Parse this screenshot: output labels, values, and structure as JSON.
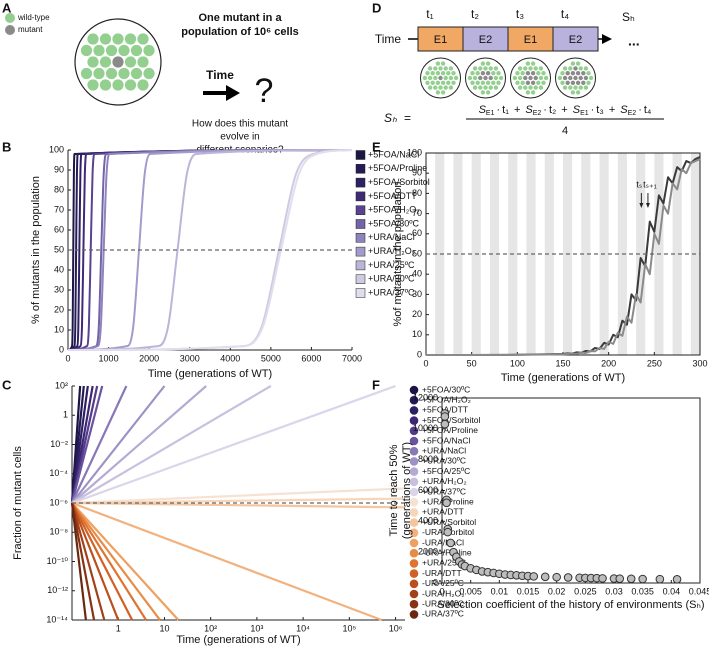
{
  "panel_a": {
    "label": "A",
    "legend": [
      "wild-type",
      "mutant"
    ],
    "heading": [
      "One mutant in a",
      "population of 10⁶ cells"
    ],
    "time": "Time",
    "question_mark": "?",
    "question": [
      "How does this mutant",
      "evolve in",
      "different scenarios?"
    ]
  },
  "panel_d": {
    "label": "D",
    "durations": [
      "t₁",
      "t₂",
      "t₃",
      "t₄"
    ],
    "environments": [
      "E1",
      "E2",
      "E1",
      "E2"
    ],
    "history": "Sₕ",
    "time": "Time",
    "ellipsis": "...",
    "formula": {
      "lhs": "Sₕ",
      "equals": "=",
      "dot": "·",
      "plus": "+",
      "denominator": "4",
      "terms": [
        {
          "symbol": "S",
          "env": "E1",
          "time": "t₁"
        },
        {
          "symbol": "S",
          "env": "E2",
          "time": "t₂"
        },
        {
          "symbol": "S",
          "env": "E1",
          "time": "t₃"
        },
        {
          "symbol": "S",
          "env": "E2",
          "time": "t₄"
        }
      ]
    }
  },
  "chart_data": [
    {
      "type": "line",
      "panel": "B",
      "smooth": true,
      "frame": "axes",
      "legend_marker": "square",
      "xlabel": "Time (generations of WT)",
      "ylabel": "% of mutants in the population",
      "xlim": [
        0,
        7000
      ],
      "xticks": [
        0,
        1000,
        2000,
        3000,
        4000,
        5000,
        6000,
        7000
      ],
      "ylim": [
        0,
        100
      ],
      "yticks": [
        0,
        10,
        20,
        30,
        40,
        50,
        60,
        70,
        80,
        90,
        100
      ],
      "hline": 50,
      "series": [
        {
          "name": "+5FOA/NaCl",
          "color": "#1c1846",
          "x": [
            0,
            100,
            115,
            130,
            145,
            160,
            7000
          ],
          "values": [
            0,
            2,
            12,
            50,
            88,
            98,
            100
          ]
        },
        {
          "name": "+5FOA/Proline",
          "color": "#231c56",
          "x": [
            0,
            160,
            180,
            200,
            220,
            240,
            7000
          ],
          "values": [
            0,
            2,
            12,
            50,
            88,
            98,
            100
          ]
        },
        {
          "name": "+5FOA/Sorbitol",
          "color": "#2e2064",
          "x": [
            0,
            230,
            255,
            280,
            305,
            330,
            7000
          ],
          "values": [
            0,
            2,
            12,
            50,
            88,
            98,
            100
          ]
        },
        {
          "name": "+5FOA/DTT",
          "color": "#402a78",
          "x": [
            0,
            310,
            345,
            380,
            415,
            450,
            7000
          ],
          "values": [
            0,
            2,
            12,
            50,
            88,
            98,
            100
          ]
        },
        {
          "name": "+5FOA/H₂O₂",
          "color": "#5a4290",
          "x": [
            0,
            470,
            515,
            560,
            605,
            650,
            7000
          ],
          "values": [
            0,
            2,
            12,
            50,
            88,
            98,
            100
          ]
        },
        {
          "name": "+5FOA/30ºC",
          "color": "#7463a8",
          "x": [
            0,
            700,
            760,
            820,
            880,
            940,
            7000
          ],
          "values": [
            0,
            2,
            12,
            50,
            88,
            98,
            100
          ]
        },
        {
          "name": "+URA/NaCl",
          "color": "#8e84bd",
          "x": [
            0,
            740,
            810,
            880,
            950,
            1020,
            7000
          ],
          "values": [
            0,
            2,
            12,
            50,
            88,
            98,
            100
          ]
        },
        {
          "name": "+URA/H₂O₂",
          "color": "#a49bcb",
          "x": [
            0,
            1470,
            1610,
            1750,
            1890,
            2030,
            7000
          ],
          "values": [
            0,
            2,
            12,
            50,
            88,
            98,
            100
          ]
        },
        {
          "name": "+URA/25ºC",
          "color": "#bdb4d9",
          "x": [
            0,
            2240,
            2470,
            2700,
            2930,
            3160,
            7000
          ],
          "values": [
            0,
            2,
            12,
            50,
            88,
            98,
            100
          ]
        },
        {
          "name": "+URA/30ºC",
          "color": "#d0c9e3",
          "x": [
            0,
            4360,
            4780,
            5200,
            5620,
            6040,
            7000
          ],
          "values": [
            0,
            2,
            12,
            50,
            88,
            98,
            100
          ]
        },
        {
          "name": "+URA/37ºC",
          "color": "#e2dded",
          "x": [
            0,
            4370,
            4810,
            5250,
            5690,
            6130,
            7000
          ],
          "values": [
            0,
            2,
            12,
            50,
            88,
            98,
            100
          ]
        }
      ]
    },
    {
      "type": "line",
      "panel": "C",
      "xscale": "log",
      "yscale": "log",
      "frame": "axes",
      "legend_marker": "circle",
      "xlabel": "Time (generations of WT)",
      "ylabel": "Fraction of mutant cells",
      "xlim": [
        0.1,
        1600000
      ],
      "xticks": [
        1,
        10,
        {
          "value": 100,
          "label": "10²"
        },
        {
          "value": 1000,
          "label": "10³"
        },
        {
          "value": 10000,
          "label": "10⁴"
        },
        {
          "value": 100000,
          "label": "10⁵"
        },
        {
          "value": 1000000,
          "label": "10⁶"
        }
      ],
      "ylim": [
        1e-14,
        100
      ],
      "yticks": [
        {
          "value": 100,
          "label": "10²"
        },
        1,
        {
          "value": 0.01,
          "label": "10⁻²"
        },
        {
          "value": 0.0001,
          "label": "10⁻⁴"
        },
        {
          "value": 1e-06,
          "label": "10⁻⁶"
        },
        {
          "value": 1e-08,
          "label": "10⁻⁸"
        },
        {
          "value": 1e-10,
          "label": "10⁻¹⁰"
        },
        {
          "value": 1e-12,
          "label": "10⁻¹²"
        },
        {
          "value": 1e-14,
          "label": "10⁻¹⁴"
        }
      ],
      "hline": 1e-06,
      "series": [
        {
          "name": "+5FOA/30ºC",
          "color": "#1b1545",
          "x": [
            0.1,
            0.15
          ],
          "values": [
            1e-06,
            100
          ]
        },
        {
          "name": "+5FOA/H₂O₂",
          "color": "#231a55",
          "x": [
            0.1,
            0.18
          ],
          "values": [
            1e-06,
            100
          ]
        },
        {
          "name": "+5FOA/DTT",
          "color": "#2d1f63",
          "x": [
            0.1,
            0.22
          ],
          "values": [
            1e-06,
            100
          ]
        },
        {
          "name": "+5FOA/Sorbitol",
          "color": "#3d2775",
          "x": [
            0.1,
            0.28
          ],
          "values": [
            1e-06,
            100
          ]
        },
        {
          "name": "+5FOA/Proline",
          "color": "#533a8a",
          "x": [
            0.1,
            0.35
          ],
          "values": [
            1e-06,
            100
          ]
        },
        {
          "name": "+5FOA/NaCl",
          "color": "#6b52a0",
          "x": [
            0.1,
            0.45
          ],
          "values": [
            1e-06,
            100
          ]
        },
        {
          "name": "+URA/NaCl",
          "color": "#8878b8",
          "x": [
            0.1,
            1.5
          ],
          "values": [
            1e-06,
            100
          ]
        },
        {
          "name": "+URA/30ºC",
          "color": "#9d91c6",
          "x": [
            0.1,
            10
          ],
          "values": [
            1e-06,
            100
          ]
        },
        {
          "name": "+5FOA/25ºC",
          "color": "#b4aad4",
          "x": [
            0.1,
            80
          ],
          "values": [
            1e-06,
            100
          ]
        },
        {
          "name": "+URA/H₂O₂",
          "color": "#c9c0e0",
          "x": [
            0.1,
            2000
          ],
          "values": [
            1e-06,
            100
          ]
        },
        {
          "name": "+URA/37ºC",
          "color": "#dbd4ea",
          "x": [
            0.1,
            1000000
          ],
          "values": [
            1e-06,
            100
          ]
        },
        {
          "name": "+URA/Proline",
          "color": "#f6e2d4",
          "x": [
            0.1,
            1600000
          ],
          "values": [
            1e-06,
            1e-05
          ]
        },
        {
          "name": "+URA/DTT",
          "color": "#f7d5b8",
          "x": [
            0.1,
            1600000
          ],
          "values": [
            1e-06,
            2e-06
          ]
        },
        {
          "name": "+URA/Sorbitol",
          "color": "#f5c69e",
          "x": [
            0.1,
            1600000
          ],
          "values": [
            1e-06,
            5e-07
          ]
        },
        {
          "name": "-URA/Sorbitol",
          "color": "#f2b27f",
          "x": [
            0.1,
            500000
          ],
          "values": [
            1e-06,
            1e-14
          ]
        },
        {
          "name": "-URA/NaCl",
          "color": "#eea060",
          "x": [
            0.1,
            20
          ],
          "values": [
            1e-06,
            1e-14
          ]
        },
        {
          "name": "-URA/Proline",
          "color": "#e88c45",
          "x": [
            0.1,
            8
          ],
          "values": [
            1e-06,
            1e-14
          ]
        },
        {
          "name": "+URA/25ºC",
          "color": "#de7432",
          "x": [
            0.1,
            4
          ],
          "values": [
            1e-06,
            1e-14
          ]
        },
        {
          "name": "-URA/DTT",
          "color": "#d06226",
          "x": [
            0.1,
            2
          ],
          "values": [
            1e-06,
            1e-14
          ]
        },
        {
          "name": "-URA/25ºC",
          "color": "#bb4f1e",
          "x": [
            0.1,
            1
          ],
          "values": [
            1e-06,
            1e-14
          ]
        },
        {
          "name": "-URA/H₂O₂",
          "color": "#a24018",
          "x": [
            0.1,
            0.5
          ],
          "values": [
            1e-06,
            1e-14
          ]
        },
        {
          "name": "-URA/30ºC",
          "color": "#873313",
          "x": [
            0.1,
            0.3
          ],
          "values": [
            1e-06,
            1e-14
          ]
        },
        {
          "name": "-URA/37ºC",
          "color": "#6a2810",
          "x": [
            0.1,
            0.2
          ],
          "values": [
            1e-06,
            1e-14
          ]
        }
      ]
    },
    {
      "type": "line",
      "panel": "E",
      "frame": "box",
      "env_period": 10,
      "xlabel": "Time (generations of WT)",
      "ylabel": "%of mutants in the population",
      "annotations": [
        "tₛ",
        "tₛ₊₁"
      ],
      "xlim": [
        0,
        300
      ],
      "xticks": [
        0,
        50,
        100,
        150,
        200,
        250,
        300
      ],
      "ylim": [
        0,
        100
      ],
      "yticks": [
        0,
        10,
        20,
        30,
        40,
        50,
        60,
        70,
        80,
        90,
        100
      ],
      "hline": 50,
      "x": [
        0,
        50,
        100,
        150,
        155,
        160,
        165,
        170,
        175,
        180,
        185,
        190,
        195,
        200,
        205,
        210,
        215,
        220,
        225,
        230,
        235,
        240,
        245,
        250,
        255,
        260,
        265,
        270,
        275,
        280,
        285,
        290,
        295,
        300
      ],
      "series": [
        {
          "color": "#3a3a3a",
          "values": [
            0,
            0,
            0.1,
            0.5,
            0.8,
            0.7,
            1.3,
            1.1,
            2,
            1.8,
            3.5,
            3,
            6,
            5.2,
            10,
            8.8,
            17,
            15,
            30,
            27,
            48,
            44,
            66,
            61,
            79,
            75,
            88,
            85,
            93,
            91,
            96,
            95,
            97,
            98
          ]
        },
        {
          "color": "#8a8a8a",
          "values": [
            0,
            0,
            0.1,
            0.3,
            0.5,
            0.7,
            0.6,
            1.2,
            1,
            2,
            1.8,
            3.5,
            3,
            6.5,
            5.5,
            11,
            9.5,
            19,
            16,
            30,
            26,
            45,
            40,
            60,
            55,
            74,
            70,
            85,
            82,
            92,
            90,
            95,
            96,
            97
          ]
        }
      ]
    },
    {
      "type": "scatter",
      "panel": "F",
      "frame": "box",
      "color": "#bdbdbd",
      "xlabel": "Selection coefficient of the history of environments (Sₕ)",
      "ylabel": "Time to reach 50%",
      "ylabel2": "(generations of WT)",
      "xlim": [
        0,
        0.045
      ],
      "xticks": [
        0,
        0.005,
        0.01,
        0.015,
        0.02,
        0.025,
        0.03,
        0.035,
        0.04,
        0.045
      ],
      "ylim": [
        0,
        12000
      ],
      "yticks": [
        0,
        2000,
        4000,
        6000,
        8000,
        10000,
        12000
      ],
      "x": [
        0.0005,
        0.0005,
        0.0005,
        0.0008,
        0.0008,
        0.001,
        0.001,
        0.0015,
        0.002,
        0.0025,
        0.003,
        0.0035,
        0.004,
        0.005,
        0.006,
        0.007,
        0.008,
        0.009,
        0.01,
        0.011,
        0.012,
        0.013,
        0.014,
        0.015,
        0.016,
        0.018,
        0.02,
        0.022,
        0.024,
        0.025,
        0.026,
        0.027,
        0.028,
        0.03,
        0.031,
        0.033,
        0.035,
        0.038,
        0.041
      ],
      "values": [
        11000,
        10800,
        10300,
        5400,
        5200,
        3500,
        3300,
        2600,
        2000,
        1700,
        1400,
        1200,
        1100,
        950,
        850,
        750,
        700,
        650,
        600,
        550,
        520,
        500,
        470,
        450,
        430,
        400,
        380,
        360,
        340,
        330,
        320,
        310,
        300,
        290,
        280,
        270,
        260,
        250,
        240
      ]
    }
  ]
}
